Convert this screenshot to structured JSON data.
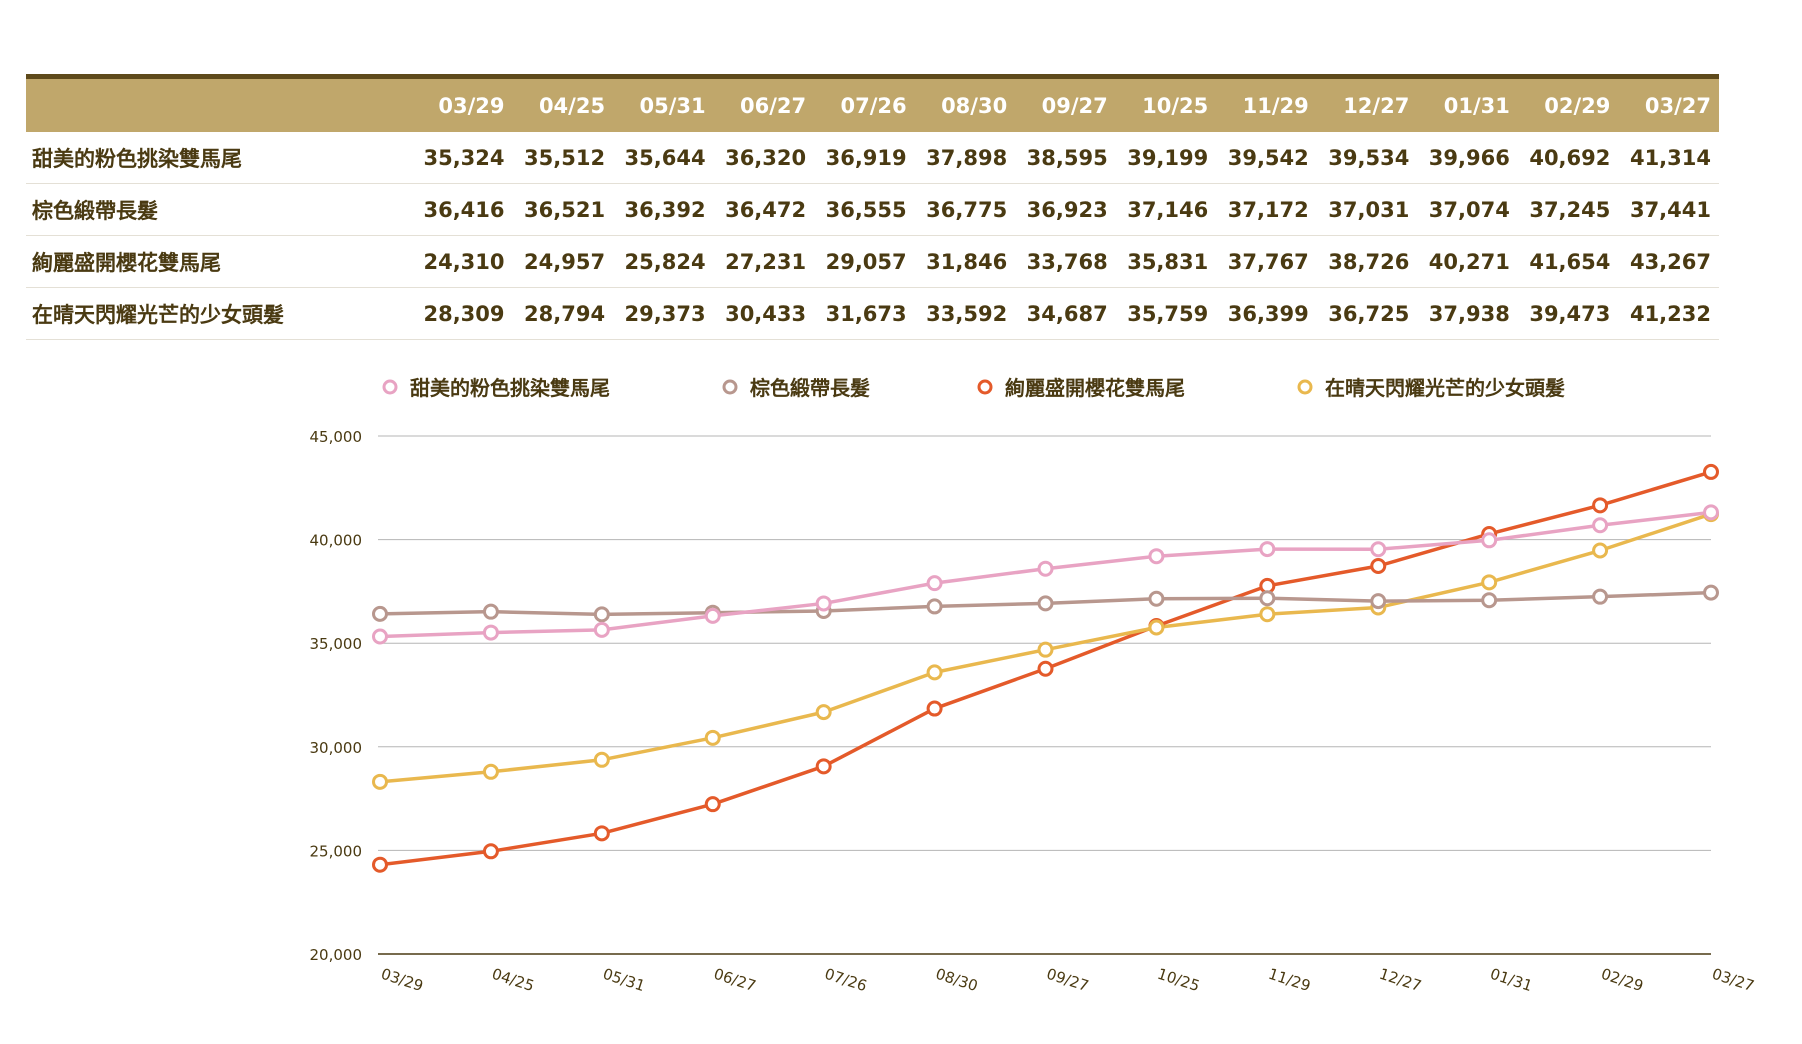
{
  "chart_data": {
    "type": "line",
    "categories": [
      "03/29",
      "04/25",
      "05/31",
      "06/27",
      "07/26",
      "08/30",
      "09/27",
      "10/25",
      "11/29",
      "12/27",
      "01/31",
      "02/29",
      "03/27"
    ],
    "series": [
      {
        "name": "甜美的粉色挑染雙馬尾",
        "color": "#e8a3c3",
        "values": [
          35324,
          35512,
          35644,
          36320,
          36919,
          37898,
          38595,
          39199,
          39542,
          39534,
          39966,
          40692,
          41314
        ]
      },
      {
        "name": "棕色緞帶長髮",
        "color": "#b8978e",
        "values": [
          36416,
          36521,
          36392,
          36472,
          36555,
          36775,
          36923,
          37146,
          37172,
          37031,
          37074,
          37245,
          37441
        ]
      },
      {
        "name": "絢麗盛開櫻花雙馬尾",
        "color": "#e45a2a",
        "values": [
          24310,
          24957,
          25824,
          27231,
          29057,
          31846,
          33768,
          35831,
          37767,
          38726,
          40271,
          41654,
          43267
        ]
      },
      {
        "name": "在晴天閃耀光芒的少女頭髮",
        "color": "#e9b84e",
        "values": [
          28309,
          28794,
          29373,
          30433,
          31673,
          33592,
          34687,
          35759,
          36399,
          36725,
          37938,
          39473,
          41232
        ]
      }
    ],
    "ylim": [
      20000,
      45000
    ],
    "yticks": [
      "20,000",
      "25,000",
      "30,000",
      "35,000",
      "40,000",
      "45,000"
    ],
    "yticks_values": [
      20000,
      25000,
      30000,
      35000,
      40000,
      45000
    ],
    "grid": true,
    "legend": "top",
    "xlabel": "",
    "ylabel": "",
    "title": ""
  },
  "table": {
    "rows_display": [
      [
        "35,324",
        "35,512",
        "35,644",
        "36,320",
        "36,919",
        "37,898",
        "38,595",
        "39,199",
        "39,542",
        "39,534",
        "39,966",
        "40,692",
        "41,314"
      ],
      [
        "36,416",
        "36,521",
        "36,392",
        "36,472",
        "36,555",
        "36,775",
        "36,923",
        "37,146",
        "37,172",
        "37,031",
        "37,074",
        "37,245",
        "37,441"
      ],
      [
        "24,310",
        "24,957",
        "25,824",
        "27,231",
        "29,057",
        "31,846",
        "33,768",
        "35,831",
        "37,767",
        "38,726",
        "40,271",
        "41,654",
        "43,267"
      ],
      [
        "28,309",
        "28,794",
        "29,373",
        "30,433",
        "31,673",
        "33,592",
        "34,687",
        "35,759",
        "36,399",
        "36,725",
        "37,938",
        "39,473",
        "41,232"
      ]
    ]
  },
  "colors": {
    "header_bg": "#c0a76b",
    "header_rule": "#5e4a1b",
    "text_dark": "#4a3a12",
    "grid": "#b5b5b5"
  }
}
